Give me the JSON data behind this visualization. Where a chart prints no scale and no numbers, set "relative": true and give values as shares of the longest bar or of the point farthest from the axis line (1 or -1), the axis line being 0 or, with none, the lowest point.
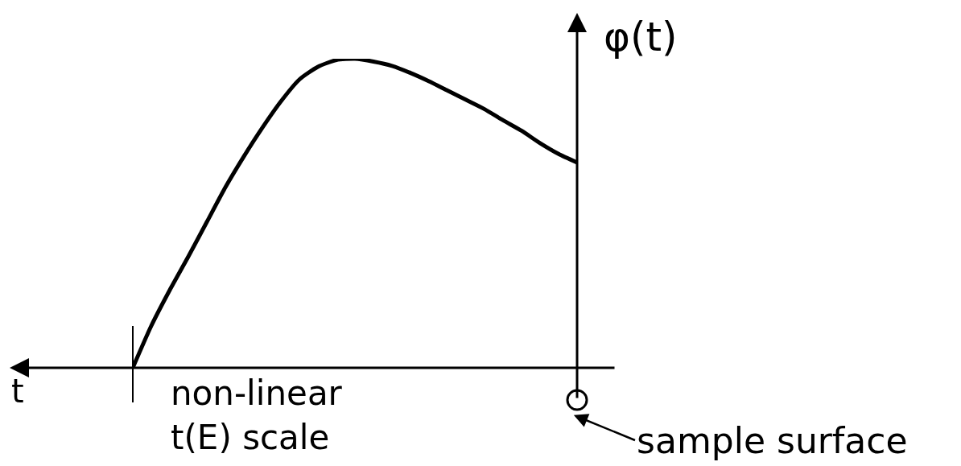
{
  "chart_data": {
    "type": "line",
    "relative": true,
    "xlabel": "t",
    "ylabel": "φ(t)",
    "annotations": [
      "non-linear\nt(E) scale",
      "sample surface"
    ],
    "categories": [
      null,
      null,
      null,
      null,
      null,
      null,
      null,
      null,
      null,
      null,
      null,
      null,
      null,
      null,
      null,
      null,
      null,
      null,
      null,
      null,
      null,
      null,
      null,
      null,
      null
    ],
    "series": [
      {
        "color": "#000000",
        "values": [
          0,
          0.136,
          0.252,
          0.36,
          0.472,
          0.584,
          0.684,
          0.777,
          0.862,
          0.933,
          0.974,
          0.996,
          1,
          0.991,
          0.977,
          0.954,
          0.927,
          0.897,
          0.867,
          0.837,
          0.801,
          0.767,
          0.727,
          0.692,
          0.664
        ]
      }
    ],
    "line_style": "solid"
  }
}
